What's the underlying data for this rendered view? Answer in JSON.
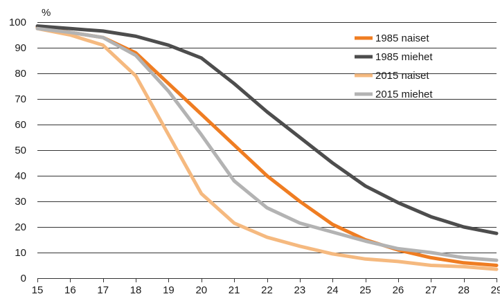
{
  "chart_data": {
    "type": "line",
    "unit_label": "%",
    "x": [
      15,
      16,
      17,
      18,
      19,
      20,
      21,
      22,
      23,
      24,
      25,
      26,
      27,
      28,
      29
    ],
    "x_ticks": [
      "15",
      "16",
      "17",
      "18",
      "19",
      "20",
      "21",
      "22",
      "23",
      "24",
      "25",
      "26",
      "27",
      "28",
      "29"
    ],
    "y_ticks": [
      "0",
      "10",
      "20",
      "30",
      "40",
      "50",
      "60",
      "70",
      "80",
      "90",
      "100"
    ],
    "ylim": [
      0,
      100
    ],
    "xlim": [
      15,
      29
    ],
    "grid": "horizontal",
    "legend_position": "top-right",
    "series": [
      {
        "name": "1985 naiset",
        "color": "#ef7d22",
        "values": [
          98,
          96,
          94,
          88,
          76,
          64,
          52,
          40,
          30,
          21,
          15,
          11,
          8,
          6,
          5
        ]
      },
      {
        "name": "1985 miehet",
        "color": "#4d4d4d",
        "values": [
          98.5,
          97.5,
          96.5,
          94.5,
          91,
          86,
          76,
          65,
          55,
          45,
          36,
          29.5,
          24,
          20,
          17.5
        ]
      },
      {
        "name": "2015 naiset",
        "color": "#f5b97f",
        "values": [
          97.5,
          95,
          91,
          79,
          56,
          33,
          21.5,
          16,
          12.5,
          9.5,
          7.5,
          6.5,
          5,
          4.5,
          3.5
        ]
      },
      {
        "name": "2015 miehet",
        "color": "#b3b3b3",
        "values": [
          97.5,
          96,
          94,
          87,
          73,
          56,
          38,
          27.5,
          21.5,
          18,
          14.5,
          11.5,
          10,
          8,
          7
        ]
      }
    ]
  }
}
